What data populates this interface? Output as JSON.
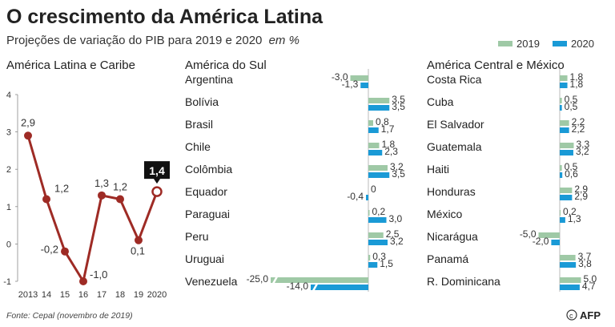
{
  "header": {
    "title": "O crescimento da América Latina",
    "subtitle": "Projeções de variação do PIB para 2019 e 2020",
    "subtitle_unit": "em %"
  },
  "legend": {
    "items": [
      {
        "label": "2019",
        "color": "#9fc9a6"
      },
      {
        "label": "2020",
        "color": "#1a9ad6"
      }
    ],
    "placement": "top-right"
  },
  "footer": {
    "source": "Fonte: Cepal (novembro de 2019)",
    "logo": "AFP"
  },
  "chart_data": [
    {
      "type": "line",
      "title": "América Latina e Caribe",
      "x": [
        "2013",
        "14",
        "15",
        "16",
        "17",
        "18",
        "19",
        "2020"
      ],
      "y": [
        2.9,
        1.2,
        -0.2,
        -1.0,
        1.3,
        1.2,
        0.1,
        1.4
      ],
      "labels": [
        "2,9",
        "1,2",
        "-0,2",
        "-1,0",
        "1,3",
        "1,2",
        "0,1",
        "1,4"
      ],
      "highlight_index": 7,
      "ylim": [
        -1,
        4
      ],
      "yticks": [
        -1,
        0,
        1,
        2,
        3,
        4
      ],
      "ytick_labels": [
        "-1",
        "0",
        "1",
        "2",
        "3",
        "4"
      ],
      "color": "#9e2b25",
      "grid": false
    },
    {
      "type": "bar",
      "orientation": "horizontal",
      "title": "América do Sul",
      "categories": [
        "Argentina",
        "Bolívia",
        "Brasil",
        "Chile",
        "Colômbia",
        "Equador",
        "Paraguai",
        "Peru",
        "Uruguai",
        "Venezuela"
      ],
      "series": [
        {
          "name": "2019",
          "values": [
            -3.0,
            3.5,
            0.8,
            1.8,
            3.2,
            0.0,
            0.2,
            2.5,
            0.3,
            -25.0
          ],
          "labels": [
            "-3,0",
            "3,5",
            "0,8",
            "1,8",
            "3,2",
            "0",
            "0,2",
            "2,5",
            "0,3",
            "-25,0"
          ]
        },
        {
          "name": "2020",
          "values": [
            -1.3,
            3.5,
            1.7,
            2.3,
            3.5,
            -0.4,
            3.0,
            3.2,
            1.5,
            -14.0
          ],
          "labels": [
            "-1,3",
            "3,5",
            "1,7",
            "2,3",
            "3,5",
            "-0,4",
            "3,0",
            "3,2",
            "1,5",
            "-14,0"
          ]
        }
      ],
      "axis_break_on": [
        "Venezuela"
      ]
    },
    {
      "type": "bar",
      "orientation": "horizontal",
      "title": "América Central e México",
      "categories": [
        "Costa Rica",
        "Cuba",
        "El Salvador",
        "Guatemala",
        "Haiti",
        "Honduras",
        "México",
        "Nicarágua",
        "Panamá",
        "R. Dominicana"
      ],
      "series": [
        {
          "name": "2019",
          "values": [
            1.8,
            0.5,
            2.2,
            3.3,
            0.5,
            2.9,
            0.2,
            -5.0,
            3.7,
            5.0
          ],
          "labels": [
            "1,8",
            "0,5",
            "2,2",
            "3,3",
            "0,5",
            "2,9",
            "0,2",
            "-5,0",
            "3,7",
            "5,0"
          ]
        },
        {
          "name": "2020",
          "values": [
            1.8,
            0.5,
            2.2,
            3.2,
            0.6,
            2.9,
            1.3,
            -2.0,
            3.8,
            4.7
          ],
          "labels": [
            "1,8",
            "0,5",
            "2,2",
            "3,2",
            "0,6",
            "2,9",
            "1,3",
            "-2,0",
            "3,8",
            "4,7"
          ]
        }
      ]
    }
  ]
}
